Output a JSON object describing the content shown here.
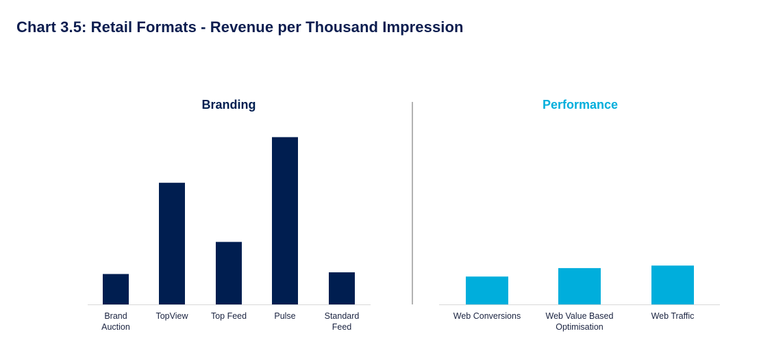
{
  "title": "Chart 3.5: Retail Formats - Revenue per Thousand Impression",
  "colors": {
    "branding": "#001e50",
    "performance": "#00aedc",
    "axis": "#d9d9d9",
    "divider": "#7f7f7f",
    "title": "#0c1d4f"
  },
  "chart_data": [
    {
      "type": "bar",
      "title": "Branding",
      "categories": [
        "Brand\nAuction",
        "TopView",
        "Top Feed",
        "Pulse",
        "Standard\nFeed"
      ],
      "values": [
        18,
        72,
        37,
        99,
        19
      ],
      "ylim": [
        0,
        100
      ],
      "xlabel": "",
      "ylabel": "",
      "grid": false,
      "color_key": "branding"
    },
    {
      "type": "bar",
      "title": "Performance",
      "categories": [
        "Web Conversions",
        "Web Value Based\nOptimisation",
        "Web Traffic"
      ],
      "values": [
        16.5,
        21.5,
        23
      ],
      "ylim": [
        0,
        100
      ],
      "xlabel": "",
      "ylabel": "",
      "grid": false,
      "color_key": "performance"
    }
  ]
}
